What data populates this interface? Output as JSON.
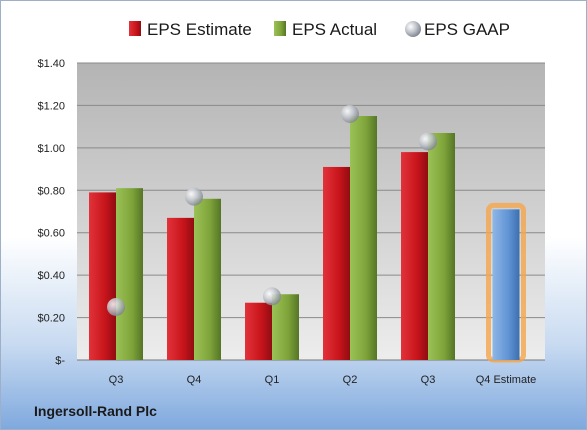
{
  "company": "Ingersoll-Rand Plc",
  "chart_data": {
    "type": "bar",
    "categories": [
      "Q3",
      "Q4",
      "Q1",
      "Q2",
      "Q3",
      "Q4 Estimate"
    ],
    "series": [
      {
        "name": "EPS Estimate",
        "values": [
          0.79,
          0.67,
          0.27,
          0.91,
          0.98,
          null
        ],
        "color": "#c8141b"
      },
      {
        "name": "EPS Actual",
        "values": [
          0.81,
          0.76,
          0.31,
          1.15,
          1.07,
          null
        ],
        "color": "#7ea33a"
      },
      {
        "name": "EPS GAAP",
        "values": [
          0.25,
          0.77,
          0.3,
          1.16,
          1.03,
          null
        ],
        "color": "#a9aeb8"
      }
    ],
    "estimate_bar": {
      "category": "Q4 Estimate",
      "value": 0.71,
      "color": "#5f93d4",
      "glow": "#f5a54a"
    },
    "y_ticks": [
      "$-",
      "$0.20",
      "$0.40",
      "$0.60",
      "$0.80",
      "$1.00",
      "$1.20",
      "$1.40"
    ],
    "ylim": [
      0,
      1.4
    ],
    "grid": true,
    "legend_position": "top"
  }
}
